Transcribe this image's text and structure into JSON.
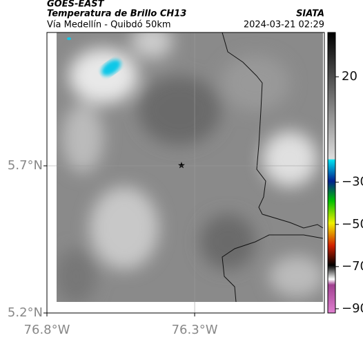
{
  "header": {
    "source": "GOES-EAST",
    "title": "Temperatura de Brillo CH13",
    "brand": "SIATA",
    "subtitle": "Vía Medellín - Quibdó 50km",
    "timestamp": "2024-03-21 02:29"
  },
  "map": {
    "latlim": [
      5.2,
      6.153
    ],
    "lonlim": [
      -76.8,
      -75.861
    ],
    "latticks": [
      {
        "value": 5.2,
        "label": "5.2°N"
      },
      {
        "value": 5.7,
        "label": "5.7°N"
      }
    ],
    "lonticks": [
      {
        "value": -76.8,
        "label": "76.8°W"
      },
      {
        "value": -76.3,
        "label": "76.3°W"
      }
    ]
  },
  "colorbar": {
    "lim": [
      -92,
      41
    ],
    "ticks": [
      {
        "value": 20,
        "label": "20"
      },
      {
        "value": -30,
        "label": "−30"
      },
      {
        "value": -50,
        "label": "−50"
      },
      {
        "value": -70,
        "label": "−70"
      },
      {
        "value": -90,
        "label": "−90"
      }
    ]
  }
}
